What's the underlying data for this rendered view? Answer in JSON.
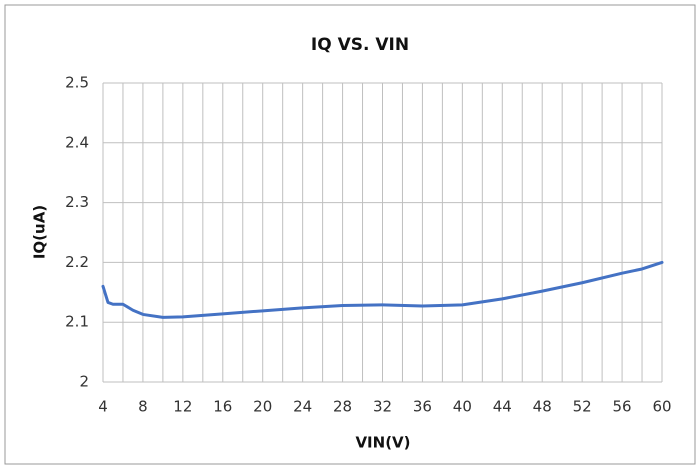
{
  "chart_data": {
    "type": "line",
    "title": "IQ VS. VIN",
    "x_label": "VIN(V)",
    "y_label": "IQ(uA)",
    "x": [
      4,
      4.5,
      5,
      6,
      7,
      8,
      10,
      12,
      16,
      20,
      24,
      28,
      32,
      36,
      40,
      44,
      48,
      52,
      56,
      58,
      60
    ],
    "series": [
      {
        "name": "IQ",
        "color": "#4472c4",
        "values": [
          2.16,
          2.133,
          2.13,
          2.13,
          2.12,
          2.113,
          2.108,
          2.109,
          2.114,
          2.119,
          2.124,
          2.128,
          2.129,
          2.127,
          2.129,
          2.139,
          2.152,
          2.166,
          2.182,
          2.189,
          2.2
        ]
      }
    ],
    "xlim": [
      4,
      60
    ],
    "xticks": [
      4,
      8,
      12,
      16,
      20,
      24,
      28,
      32,
      36,
      40,
      44,
      48,
      52,
      56,
      60
    ],
    "x_minor_ticks": [
      6,
      10,
      14,
      18,
      22,
      26,
      30,
      34,
      38,
      42,
      46,
      50,
      54,
      58
    ],
    "ylim": [
      2,
      2.5
    ],
    "yticks": [
      {
        "value": 2,
        "label": "2"
      },
      2.1,
      2.2,
      2.3,
      2.4,
      2.5
    ],
    "grid": true
  }
}
